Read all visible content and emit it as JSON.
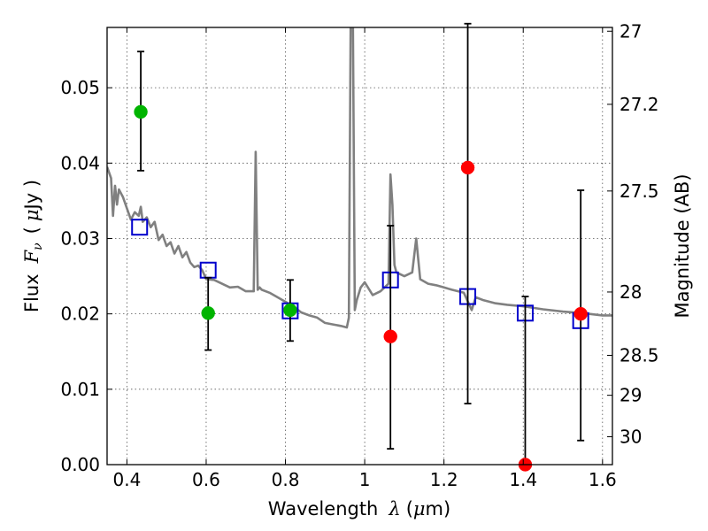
{
  "chart_data": {
    "type": "scatter",
    "title": "",
    "xlabel": "Wavelength",
    "xlabel_symbol": "λ",
    "xlabel_unit_open": "(",
    "xlabel_unit_mu": "μ",
    "xlabel_unit_rest": "m)",
    "ylabel": "Flux",
    "ylabel_symbol": "F",
    "ylabel_sub": "ν",
    "ylabel_unit_open": "(",
    "ylabel_unit_mu": "μ",
    "ylabel_unit_rest": "Jy )",
    "y2label": "Magnitude (AB)",
    "xlim": [
      0.35,
      1.625
    ],
    "ylim": [
      0.0,
      0.058
    ],
    "grid": true,
    "x_ticks": [
      0.4,
      0.6,
      0.8,
      1.0,
      1.2,
      1.4,
      1.6
    ],
    "x_tick_labels": [
      "0.4",
      "0.6",
      "0.8",
      "1",
      "1.2",
      "1.4",
      "1.6"
    ],
    "y_ticks": [
      0.0,
      0.01,
      0.02,
      0.03,
      0.04,
      0.05
    ],
    "y_tick_labels": [
      "0.00",
      "0.01",
      "0.02",
      "0.03",
      "0.04",
      "0.05"
    ],
    "y2_ticks": [
      {
        "flux": 0.0575,
        "label": "27"
      },
      {
        "flux": 0.0478,
        "label": "27.2"
      },
      {
        "flux": 0.0363,
        "label": "27.5"
      },
      {
        "flux": 0.0229,
        "label": "28"
      },
      {
        "flux": 0.0145,
        "label": "28.5"
      },
      {
        "flux": 0.0092,
        "label": "29"
      },
      {
        "flux": 0.0037,
        "label": "30"
      }
    ],
    "colors": {
      "template": "#808080",
      "observed_green": "#00b400",
      "observed_red": "#ff0000",
      "model": "#0000cc",
      "errorbar": "#000000",
      "grid": "#555555"
    },
    "series": [
      {
        "name": "template spectrum",
        "kind": "line",
        "x": [
          0.35,
          0.36,
          0.365,
          0.37,
          0.375,
          0.38,
          0.39,
          0.4,
          0.41,
          0.42,
          0.43,
          0.435,
          0.44,
          0.45,
          0.46,
          0.47,
          0.48,
          0.49,
          0.5,
          0.51,
          0.52,
          0.53,
          0.54,
          0.55,
          0.56,
          0.57,
          0.58,
          0.59,
          0.6,
          0.62,
          0.64,
          0.66,
          0.68,
          0.7,
          0.72,
          0.725,
          0.73,
          0.735,
          0.74,
          0.76,
          0.78,
          0.8,
          0.82,
          0.84,
          0.86,
          0.88,
          0.9,
          0.92,
          0.94,
          0.955,
          0.96,
          0.965,
          0.967,
          0.97,
          0.975,
          0.98,
          0.99,
          1.0,
          1.02,
          1.04,
          1.06,
          1.065,
          1.07,
          1.075,
          1.08,
          1.1,
          1.12,
          1.13,
          1.14,
          1.16,
          1.18,
          1.2,
          1.22,
          1.25,
          1.27,
          1.28,
          1.3,
          1.33,
          1.36,
          1.4,
          1.45,
          1.5,
          1.55,
          1.6,
          1.625
        ],
        "y": [
          0.0395,
          0.038,
          0.033,
          0.037,
          0.0345,
          0.0365,
          0.0355,
          0.034,
          0.0325,
          0.0335,
          0.033,
          0.0342,
          0.0322,
          0.0328,
          0.0315,
          0.0322,
          0.0298,
          0.0305,
          0.029,
          0.0295,
          0.028,
          0.029,
          0.0275,
          0.0282,
          0.0268,
          0.0262,
          0.0264,
          0.0258,
          0.0246,
          0.0245,
          0.024,
          0.0235,
          0.0236,
          0.023,
          0.023,
          0.0415,
          0.0232,
          0.0235,
          0.0232,
          0.0228,
          0.0222,
          0.0216,
          0.021,
          0.0202,
          0.0198,
          0.0195,
          0.0188,
          0.0186,
          0.0184,
          0.0182,
          0.0195,
          0.062,
          0.062,
          0.06,
          0.0205,
          0.0218,
          0.0235,
          0.0242,
          0.0225,
          0.023,
          0.024,
          0.0385,
          0.0345,
          0.0265,
          0.0255,
          0.025,
          0.0255,
          0.03,
          0.0246,
          0.024,
          0.0238,
          0.0235,
          0.0232,
          0.0228,
          0.0205,
          0.0222,
          0.0218,
          0.0214,
          0.0212,
          0.021,
          0.0206,
          0.0203,
          0.0201,
          0.0198,
          0.0198
        ]
      },
      {
        "name": "model photometry",
        "kind": "open-square",
        "x": [
          0.432,
          0.605,
          0.812,
          1.065,
          1.26,
          1.405,
          1.545
        ],
        "y": [
          0.0315,
          0.0258,
          0.0204,
          0.0245,
          0.0223,
          0.0201,
          0.0191
        ]
      },
      {
        "name": "observed green",
        "kind": "filled-circle",
        "x": [
          0.435,
          0.605,
          0.812
        ],
        "y": [
          0.0468,
          0.0201,
          0.0205
        ],
        "err_low": [
          0.039,
          0.0152,
          0.0164
        ],
        "err_high": [
          0.0548,
          0.0248,
          0.0245
        ]
      },
      {
        "name": "observed red",
        "kind": "filled-circle",
        "x": [
          1.065,
          1.26,
          1.405,
          1.545
        ],
        "y": [
          0.017,
          0.0394,
          0.0,
          0.02
        ],
        "err_low": [
          0.0021,
          0.0081,
          0.0,
          0.0032
        ],
        "err_high": [
          0.0317,
          0.0585,
          0.0223,
          0.0364
        ]
      }
    ]
  }
}
